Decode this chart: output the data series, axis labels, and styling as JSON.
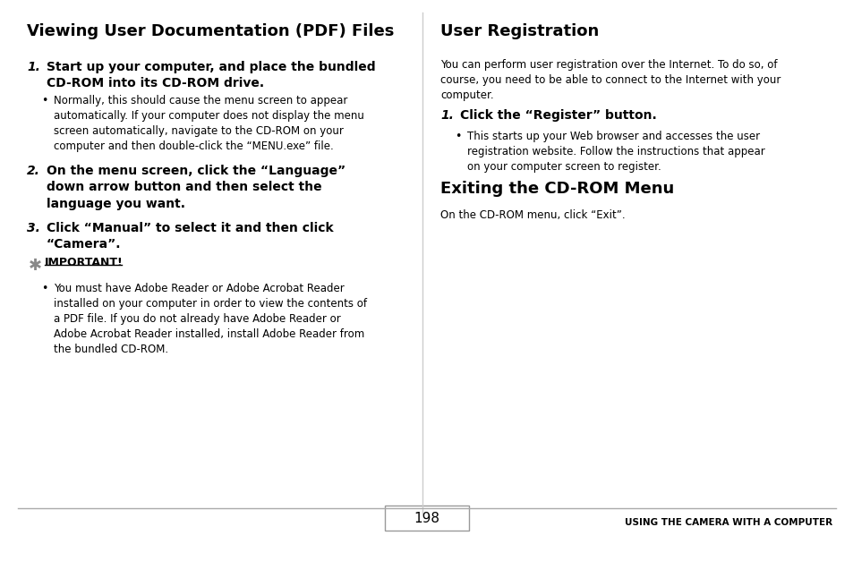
{
  "bg_color": "#ffffff",
  "text_color": "#000000",
  "page_number": "198",
  "footer_right": "USING THE CAMERA WITH A COMPUTER",
  "left_title": "Viewing User Documentation (PDF) Files",
  "item1_num": "1.",
  "item1_text": "Start up your computer, and place the bundled\nCD-ROM into its CD-ROM drive.",
  "bullet1": "Normally, this should cause the menu screen to appear\nautomatically. If your computer does not display the menu\nscreen automatically, navigate to the CD-ROM on your\ncomputer and then double-click the “MENU.exe” file.",
  "item2_num": "2.",
  "item2_text": "On the menu screen, click the “Language”\ndown arrow button and then select the\nlanguage you want.",
  "item3_num": "3.",
  "item3_text": "Click “Manual” to select it and then click\n“Camera”.",
  "important_label": "IMPORTANT!",
  "important_bullet": "You must have Adobe Reader or Adobe Acrobat Reader\ninstalled on your computer in order to view the contents of\na PDF file. If you do not already have Adobe Reader or\nAdobe Acrobat Reader installed, install Adobe Reader from\nthe bundled CD-ROM.",
  "right_title1": "User Registration",
  "right_para1": "You can perform user registration over the Internet. To do so, of\ncourse, you need to be able to connect to the Internet with your\ncomputer.",
  "right_sub1_num": "1.",
  "right_sub1_text": "Click the “Register” button.",
  "right_bullet1": "This starts up your Web browser and accesses the user\nregistration website. Follow the instructions that appear\non your computer screen to register.",
  "right_title2": "Exiting the CD-ROM Menu",
  "right_para2": "On the CD-ROM menu, click “Exit”."
}
